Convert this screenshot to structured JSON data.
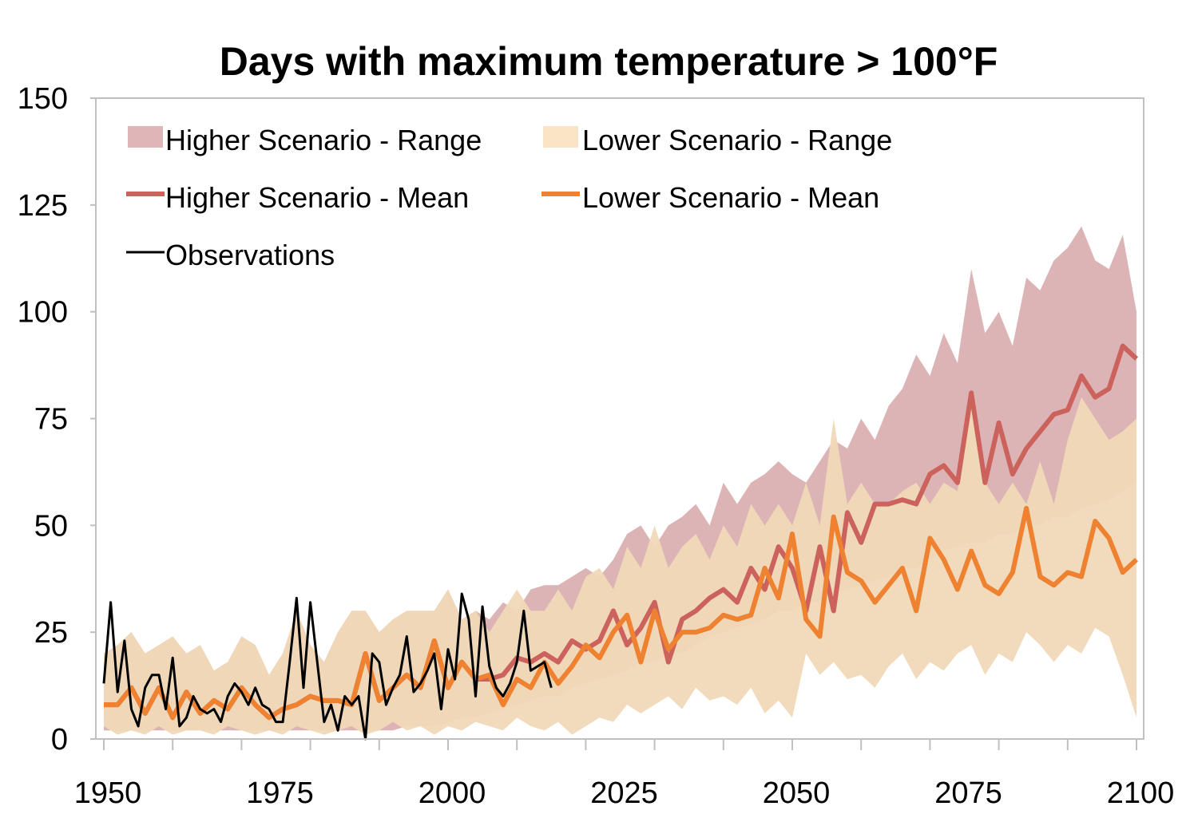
{
  "chart_data": {
    "type": "line",
    "title": "Days with maximum temperature > 100°F",
    "xlabel": "",
    "ylabel": "",
    "xlim": [
      1950,
      2100
    ],
    "ylim": [
      0,
      150
    ],
    "x_ticks": [
      "1950",
      "1975",
      "2000",
      "2025",
      "2050",
      "2075",
      "2100"
    ],
    "y_ticks": [
      "0",
      "25",
      "50",
      "75",
      "100",
      "125",
      "150"
    ],
    "grid": false,
    "legend_position": "top-left",
    "colors": {
      "higher_range": "#dcb4b6",
      "lower_range": "#f0d9b8",
      "higher_mean": "#cc625c",
      "lower_mean": "#ee8230",
      "observations": "#000000"
    },
    "legend": {
      "higher_range": "Higher Scenario - Range",
      "lower_range": "Lower Scenario - Range",
      "higher_mean": "Higher Scenario - Mean",
      "lower_mean": "Lower Scenario - Mean",
      "observations": "Observations"
    },
    "model_years": [
      1950,
      1952,
      1954,
      1956,
      1958,
      1960,
      1962,
      1964,
      1966,
      1968,
      1970,
      1972,
      1974,
      1976,
      1978,
      1980,
      1982,
      1984,
      1986,
      1988,
      1990,
      1992,
      1994,
      1996,
      1998,
      2000,
      2002,
      2004,
      2006,
      2008,
      2010,
      2012,
      2014,
      2016,
      2018,
      2020,
      2022,
      2024,
      2026,
      2028,
      2030,
      2032,
      2034,
      2036,
      2038,
      2040,
      2042,
      2044,
      2046,
      2048,
      2050,
      2052,
      2054,
      2056,
      2058,
      2060,
      2062,
      2064,
      2066,
      2068,
      2070,
      2072,
      2074,
      2076,
      2078,
      2080,
      2082,
      2084,
      2086,
      2088,
      2090,
      2092,
      2094,
      2096,
      2098,
      2100
    ],
    "series": [
      {
        "name": "Higher Scenario - Range",
        "kind": "band",
        "upper": [
          20,
          22,
          25,
          20,
          22,
          24,
          20,
          22,
          16,
          18,
          24,
          22,
          15,
          20,
          30,
          22,
          18,
          25,
          30,
          30,
          25,
          28,
          30,
          30,
          30,
          35,
          28,
          30,
          28,
          32,
          30,
          35,
          36,
          36,
          38,
          40,
          38,
          42,
          48,
          50,
          45,
          50,
          52,
          55,
          50,
          60,
          55,
          60,
          62,
          65,
          62,
          60,
          65,
          70,
          68,
          75,
          70,
          78,
          82,
          90,
          85,
          95,
          88,
          110,
          95,
          100,
          92,
          108,
          105,
          112,
          115,
          120,
          112,
          110,
          118,
          100
        ],
        "lower": [
          2,
          2,
          2,
          2,
          2,
          2,
          2,
          2,
          2,
          2,
          2,
          2,
          2,
          2,
          2,
          2,
          2,
          2,
          2,
          2,
          2,
          2,
          3,
          3,
          3,
          4,
          5,
          5,
          6,
          7,
          8,
          9,
          10,
          10,
          12,
          13,
          14,
          15,
          16,
          18,
          18,
          20,
          20,
          22,
          24,
          25,
          26,
          27,
          28,
          30,
          30,
          32,
          32,
          34,
          35,
          36,
          37,
          38,
          40,
          40,
          42,
          44,
          45,
          46,
          46,
          48,
          48,
          50,
          50,
          52,
          52,
          54,
          55,
          56,
          58,
          60
        ]
      },
      {
        "name": "Lower Scenario - Range",
        "kind": "band",
        "upper": [
          20,
          22,
          25,
          20,
          22,
          24,
          20,
          22,
          16,
          18,
          24,
          22,
          15,
          20,
          30,
          22,
          18,
          25,
          30,
          30,
          25,
          28,
          30,
          30,
          30,
          35,
          28,
          30,
          25,
          30,
          35,
          30,
          30,
          35,
          30,
          38,
          40,
          35,
          45,
          40,
          50,
          40,
          45,
          48,
          42,
          50,
          45,
          55,
          50,
          55,
          50,
          60,
          50,
          75,
          55,
          60,
          55,
          55,
          58,
          60,
          55,
          60,
          58,
          78,
          60,
          55,
          60,
          55,
          65,
          55,
          70,
          80,
          75,
          70,
          72,
          75
        ],
        "lower": [
          3,
          1,
          2,
          1,
          3,
          1,
          2,
          2,
          1,
          3,
          2,
          1,
          2,
          1,
          3,
          2,
          1,
          2,
          3,
          1,
          2,
          4,
          2,
          3,
          1,
          3,
          2,
          4,
          3,
          2,
          5,
          3,
          2,
          4,
          1,
          3,
          5,
          4,
          8,
          6,
          8,
          10,
          7,
          12,
          9,
          10,
          8,
          12,
          6,
          9,
          5,
          20,
          15,
          18,
          14,
          15,
          12,
          17,
          20,
          14,
          18,
          16,
          20,
          22,
          15,
          20,
          18,
          25,
          22,
          18,
          22,
          20,
          26,
          24,
          15,
          5
        ]
      },
      {
        "name": "Higher Scenario - Mean",
        "kind": "line",
        "values": [
          8,
          8,
          12,
          6,
          12,
          5,
          11,
          6,
          9,
          7,
          12,
          8,
          5,
          7,
          8,
          10,
          9,
          9,
          8,
          20,
          9,
          12,
          15,
          12,
          23,
          12,
          18,
          14,
          14,
          15,
          19,
          18,
          20,
          18,
          23,
          21,
          23,
          30,
          22,
          26,
          32,
          18,
          28,
          30,
          33,
          35,
          32,
          40,
          35,
          45,
          40,
          30,
          45,
          30,
          53,
          46,
          55,
          55,
          56,
          55,
          62,
          64,
          60,
          81,
          60,
          74,
          62,
          68,
          72,
          76,
          77,
          85,
          80,
          82,
          92,
          89
        ]
      },
      {
        "name": "Lower Scenario - Mean",
        "kind": "line",
        "values": [
          8,
          8,
          12,
          6,
          12,
          5,
          11,
          6,
          9,
          7,
          12,
          8,
          5,
          7,
          8,
          10,
          9,
          9,
          8,
          20,
          9,
          12,
          15,
          12,
          23,
          12,
          18,
          14,
          15,
          8,
          14,
          12,
          18,
          13,
          17,
          22,
          19,
          25,
          29,
          18,
          30,
          21,
          25,
          25,
          26,
          29,
          28,
          29,
          40,
          33,
          48,
          28,
          24,
          52,
          39,
          37,
          32,
          36,
          40,
          30,
          47,
          42,
          35,
          44,
          36,
          34,
          39,
          54,
          38,
          36,
          39,
          38,
          51,
          47,
          39,
          42
        ]
      },
      {
        "name": "Observations",
        "kind": "line",
        "years": [
          1950,
          1951,
          1952,
          1953,
          1954,
          1955,
          1956,
          1957,
          1958,
          1959,
          1960,
          1961,
          1962,
          1963,
          1964,
          1965,
          1966,
          1967,
          1968,
          1969,
          1970,
          1971,
          1972,
          1973,
          1974,
          1975,
          1976,
          1977,
          1978,
          1979,
          1980,
          1981,
          1982,
          1983,
          1984,
          1985,
          1986,
          1987,
          1988,
          1989,
          1990,
          1991,
          1992,
          1993,
          1994,
          1995,
          1996,
          1997,
          1998,
          1999,
          2000,
          2001,
          2002,
          2003,
          2004,
          2005,
          2006,
          2007,
          2008,
          2009,
          2010,
          2011,
          2012,
          2013,
          2014,
          2015
        ],
        "values": [
          13,
          32,
          11,
          23,
          7,
          3,
          12,
          15,
          15,
          7,
          19,
          3,
          5,
          10,
          7,
          6,
          7,
          4,
          10,
          13,
          11,
          8,
          12,
          8,
          7,
          4,
          4,
          18,
          33,
          12,
          32,
          18,
          4,
          8,
          2,
          10,
          8,
          10,
          0,
          20,
          18,
          8,
          12,
          15,
          24,
          11,
          13,
          16,
          20,
          7,
          21,
          14,
          34,
          28,
          10,
          31,
          17,
          12,
          10,
          13,
          18,
          30,
          16,
          17,
          18,
          12
        ]
      }
    ]
  }
}
